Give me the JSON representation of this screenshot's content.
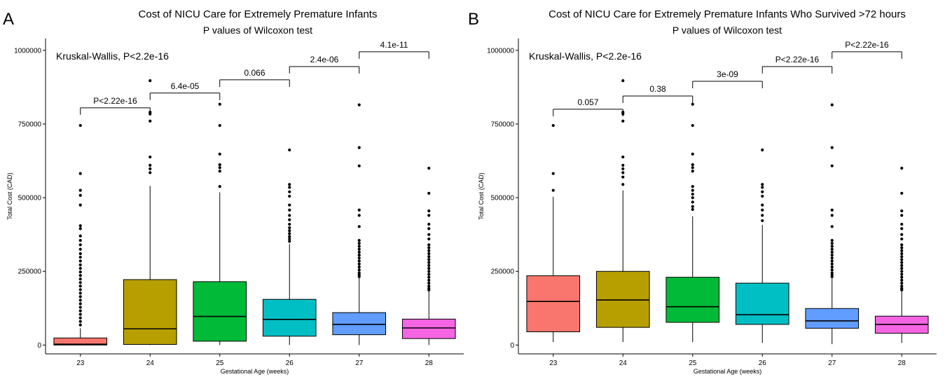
{
  "chart_data": [
    {
      "type": "box",
      "panel_letter": "A",
      "title": "Cost of NICU Care for Extremely Premature Infants",
      "subtitle": "P values of Wilcoxon test",
      "xlabel": "Gestational Age (weeks)",
      "ylabel": "Total Cost (CAD)",
      "ylim": [
        -30000,
        1040000
      ],
      "yticks": [
        0,
        250000,
        500000,
        750000,
        1000000
      ],
      "ytick_labels": [
        "0",
        "250000",
        "500000",
        "750000",
        "1000000"
      ],
      "annotation": "Kruskal-Wallis, P<2.2e-16",
      "categories": [
        "23",
        "24",
        "25",
        "26",
        "27",
        "28"
      ],
      "colors": [
        "#F8766D",
        "#B79F00",
        "#00BA38",
        "#00BFC4",
        "#619CFF",
        "#F564E3"
      ],
      "boxes": [
        {
          "q1": 0,
          "median": 3000,
          "q3": 24000,
          "whisker_low": 0,
          "whisker_high": 57000,
          "outliers": [
            745000,
            582000,
            525000,
            508000,
            475000,
            405000,
            395000,
            370000,
            355000,
            340000,
            325000,
            310000,
            298000,
            285000,
            272000,
            260000,
            248000,
            236000,
            224000,
            212000,
            200000,
            188000,
            176000,
            164000,
            152000,
            140000,
            128000,
            116000,
            104000,
            92000,
            80000,
            68000
          ]
        },
        {
          "q1": 2000,
          "median": 55000,
          "q3": 222000,
          "whisker_low": 0,
          "whisker_high": 540000,
          "outliers": [
            897000,
            790000,
            784000,
            760000,
            638000,
            610000,
            598000,
            585000
          ]
        },
        {
          "q1": 13000,
          "median": 97000,
          "q3": 215000,
          "whisker_low": 0,
          "whisker_high": 518000,
          "outliers": [
            817000,
            745000,
            648000,
            612000,
            602000,
            590000,
            538000
          ]
        },
        {
          "q1": 30000,
          "median": 87000,
          "q3": 155000,
          "whisker_low": 0,
          "whisker_high": 343000,
          "outliers": [
            662000,
            545000,
            535000,
            520000,
            505000,
            475000,
            458000,
            440000,
            425000,
            410000,
            398000,
            388000,
            378000,
            368000,
            360000,
            352000
          ]
        },
        {
          "q1": 35000,
          "median": 70000,
          "q3": 110000,
          "whisker_low": 0,
          "whisker_high": 228000,
          "outliers": [
            815000,
            670000,
            608000,
            458000,
            440000,
            402000,
            355000,
            345000,
            335000,
            325000,
            315000,
            305000,
            295000,
            285000,
            275000,
            265000,
            255000,
            245000,
            238000,
            232000
          ]
        },
        {
          "q1": 22000,
          "median": 58000,
          "q3": 88000,
          "whisker_low": 0,
          "whisker_high": 183000,
          "outliers": [
            600000,
            515000,
            455000,
            440000,
            410000,
            395000,
            375000,
            360000,
            340000,
            330000,
            320000,
            310000,
            300000,
            290000,
            280000,
            270000,
            260000,
            250000,
            240000,
            230000,
            220000,
            210000,
            200000,
            192000,
            187000
          ]
        }
      ],
      "comparisons": [
        {
          "groups": [
            "23",
            "24"
          ],
          "label": "P<2.22e-16",
          "y": 805000
        },
        {
          "groups": [
            "24",
            "25"
          ],
          "label": "6.4e-05",
          "y": 855000
        },
        {
          "groups": [
            "25",
            "26"
          ],
          "label": "0.066",
          "y": 900000
        },
        {
          "groups": [
            "26",
            "27"
          ],
          "label": "2.4e-06",
          "y": 945000
        },
        {
          "groups": [
            "27",
            "28"
          ],
          "label": "4.1e-11",
          "y": 995000
        }
      ]
    },
    {
      "type": "box",
      "panel_letter": "B",
      "title": "Cost of NICU Care for Extremely Premature Infants Who Survived >72 hours",
      "subtitle": "P values of Wilcoxon test",
      "xlabel": "Gestational Age (weeks)",
      "ylabel": "Total Cost (CAD)",
      "ylim": [
        -30000,
        1040000
      ],
      "yticks": [
        0,
        250000,
        500000,
        750000,
        1000000
      ],
      "ytick_labels": [
        "0",
        "250000",
        "500000",
        "750000",
        "1000000"
      ],
      "annotation": "Kruskal-Wallis, P<2.2e-16",
      "categories": [
        "23",
        "24",
        "25",
        "26",
        "27",
        "28"
      ],
      "colors": [
        "#F8766D",
        "#B79F00",
        "#00BA38",
        "#00BFC4",
        "#619CFF",
        "#F564E3"
      ],
      "boxes": [
        {
          "q1": 45000,
          "median": 148000,
          "q3": 235000,
          "whisker_low": 10000,
          "whisker_high": 503000,
          "outliers": [
            745000,
            582000,
            525000
          ]
        },
        {
          "q1": 60000,
          "median": 153000,
          "q3": 250000,
          "whisker_low": 10000,
          "whisker_high": 525000,
          "outliers": [
            897000,
            790000,
            784000,
            760000,
            638000,
            610000,
            598000,
            585000,
            570000,
            545000
          ]
        },
        {
          "q1": 77000,
          "median": 130000,
          "q3": 230000,
          "whisker_low": 10000,
          "whisker_high": 437000,
          "outliers": [
            817000,
            745000,
            648000,
            612000,
            602000,
            590000,
            538000,
            525000,
            512000,
            500000,
            485000,
            470000,
            460000
          ]
        },
        {
          "q1": 70000,
          "median": 103000,
          "q3": 210000,
          "whisker_low": 7000,
          "whisker_high": 408000,
          "outliers": [
            662000,
            545000,
            535000,
            520000,
            505000,
            475000,
            458000,
            440000,
            422000
          ]
        },
        {
          "q1": 57000,
          "median": 82000,
          "q3": 124000,
          "whisker_low": 3000,
          "whisker_high": 228000,
          "outliers": [
            815000,
            670000,
            608000,
            458000,
            440000,
            402000,
            355000,
            345000,
            335000,
            325000,
            315000,
            305000,
            295000,
            285000,
            275000,
            265000,
            255000,
            245000,
            238000,
            232000
          ]
        },
        {
          "q1": 40000,
          "median": 70000,
          "q3": 98000,
          "whisker_low": 7000,
          "whisker_high": 182000,
          "outliers": [
            600000,
            515000,
            455000,
            440000,
            410000,
            395000,
            375000,
            360000,
            340000,
            330000,
            320000,
            310000,
            300000,
            290000,
            280000,
            270000,
            260000,
            250000,
            240000,
            230000,
            220000,
            210000,
            200000,
            192000,
            187000
          ]
        }
      ],
      "comparisons": [
        {
          "groups": [
            "23",
            "24"
          ],
          "label": "0.057",
          "y": 800000
        },
        {
          "groups": [
            "24",
            "25"
          ],
          "label": "0.38",
          "y": 845000
        },
        {
          "groups": [
            "25",
            "26"
          ],
          "label": "3e-09",
          "y": 895000
        },
        {
          "groups": [
            "26",
            "27"
          ],
          "label": "P<2.22e-16",
          "y": 945000
        },
        {
          "groups": [
            "27",
            "28"
          ],
          "label": "P<2.22e-16",
          "y": 995000
        }
      ]
    }
  ]
}
